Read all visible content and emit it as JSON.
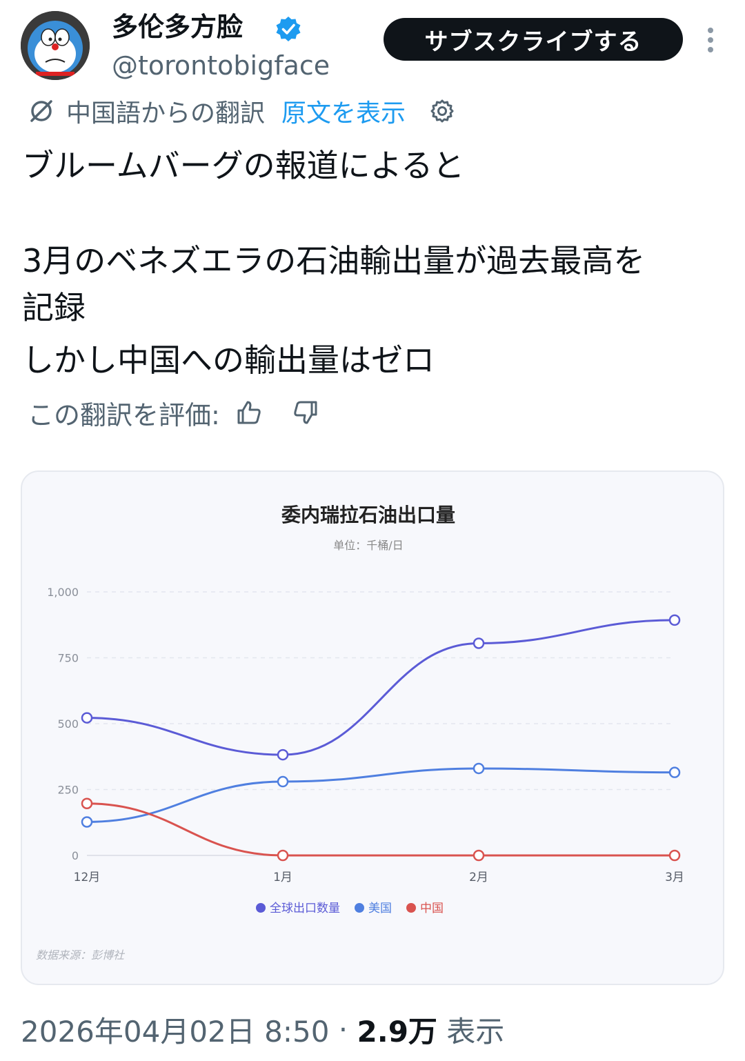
{
  "user": {
    "display_name": "多伦多方脸",
    "handle": "@torontobigface",
    "verified_icon": "verified-badge-icon",
    "subscribe_label": "サブスクライブする"
  },
  "translation": {
    "source_label": "中国語からの翻訳",
    "show_original_label": "原文を表示",
    "rate_label": "この翻訳を評価:"
  },
  "tweet": {
    "lines": [
      "ブルームバーグの報道によると",
      "",
      "3月のベネズエラの石油輸出量が過去最高を",
      "記録",
      "しかし中国への輸出量はゼロ"
    ]
  },
  "chart_data": {
    "type": "line",
    "title": "委内瑞拉石油出口量",
    "subtitle": "单位：千桶/日",
    "categories": [
      "12月",
      "1月",
      "2月",
      "3月"
    ],
    "ylim": [
      0,
      1000
    ],
    "yticks": [
      "0",
      "250",
      "500",
      "750",
      "1,000"
    ],
    "ytick_values": [
      0,
      250,
      500,
      750,
      1000
    ],
    "grid": true,
    "legend_position": "bottom",
    "source": "数据来源：彭博社",
    "series": [
      {
        "name": "全球出口数量",
        "color": "#5b5bd6",
        "values": [
          522,
          382,
          805,
          893
        ]
      },
      {
        "name": "美国",
        "color": "#4f7fe0",
        "values": [
          127,
          280,
          330,
          315
        ]
      },
      {
        "name": "中国",
        "color": "#d9534f",
        "values": [
          197,
          0,
          0,
          0
        ]
      }
    ]
  },
  "footer": {
    "date": "2026年04月02日 8:50",
    "separator": " · ",
    "views": "2.9万",
    "views_suffix": " 表示"
  }
}
